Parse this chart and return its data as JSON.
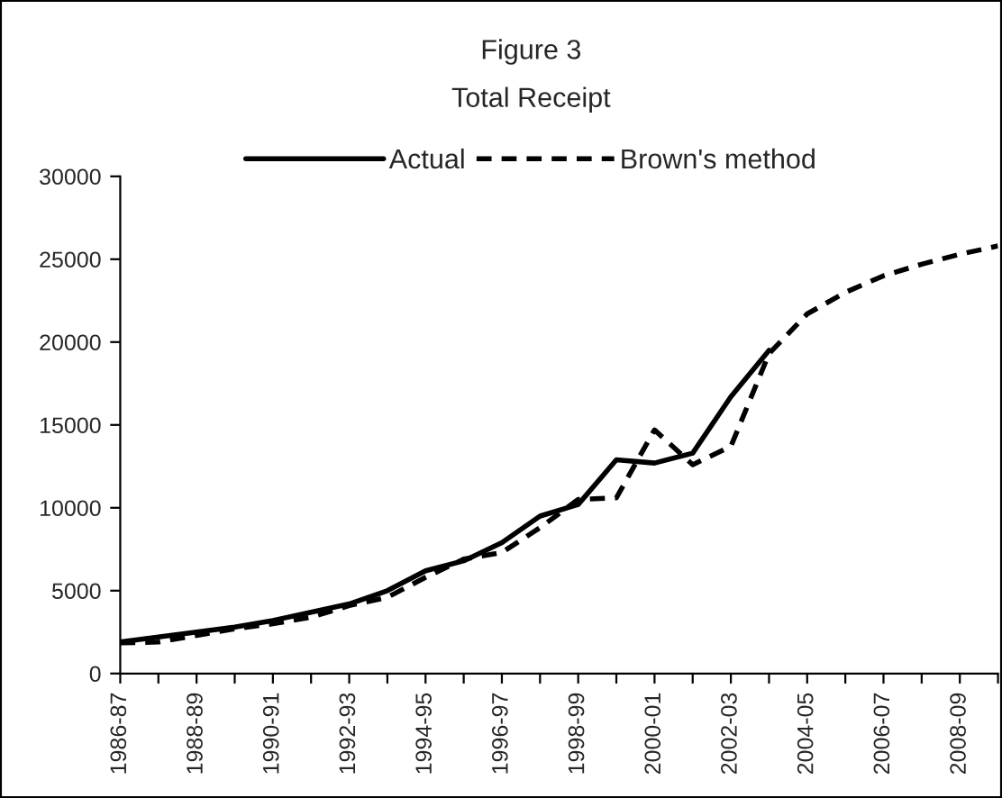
{
  "chart_data": {
    "type": "line",
    "title": "Figure 3",
    "subtitle": "Total Receipt",
    "categories": [
      "1986-87",
      null,
      "1988-89",
      null,
      "1990-91",
      null,
      "1992-93",
      null,
      "1994-95",
      null,
      "1996-97",
      null,
      "1998-99",
      null,
      "2000-01",
      null,
      "2002-03",
      null,
      "2004-05",
      null,
      "2006-07",
      null,
      "2008-09",
      null
    ],
    "series": [
      {
        "name": "Actual",
        "color": "#000000",
        "line_style": "solid",
        "values": [
          1900,
          2200,
          2500,
          2800,
          3200,
          3700,
          4200,
          5000,
          6200,
          6800,
          7900,
          9500,
          10200,
          12900,
          12700,
          13300,
          16700,
          19500,
          null,
          null,
          null,
          null,
          null,
          null
        ]
      },
      {
        "name": "Brown's method",
        "color": "#000000",
        "line_style": "dashed",
        "values": [
          1850,
          1900,
          2300,
          2700,
          3000,
          3400,
          4100,
          4600,
          5800,
          6900,
          7300,
          8800,
          10500,
          10600,
          14700,
          12600,
          13700,
          19300,
          21700,
          23000,
          24000,
          24700,
          25300,
          25800
        ]
      }
    ],
    "ylim": [
      0,
      30000
    ],
    "yticks": [
      0,
      5000,
      10000,
      15000,
      20000,
      25000,
      30000
    ],
    "grid": false,
    "legend": "top",
    "marker": "none"
  }
}
